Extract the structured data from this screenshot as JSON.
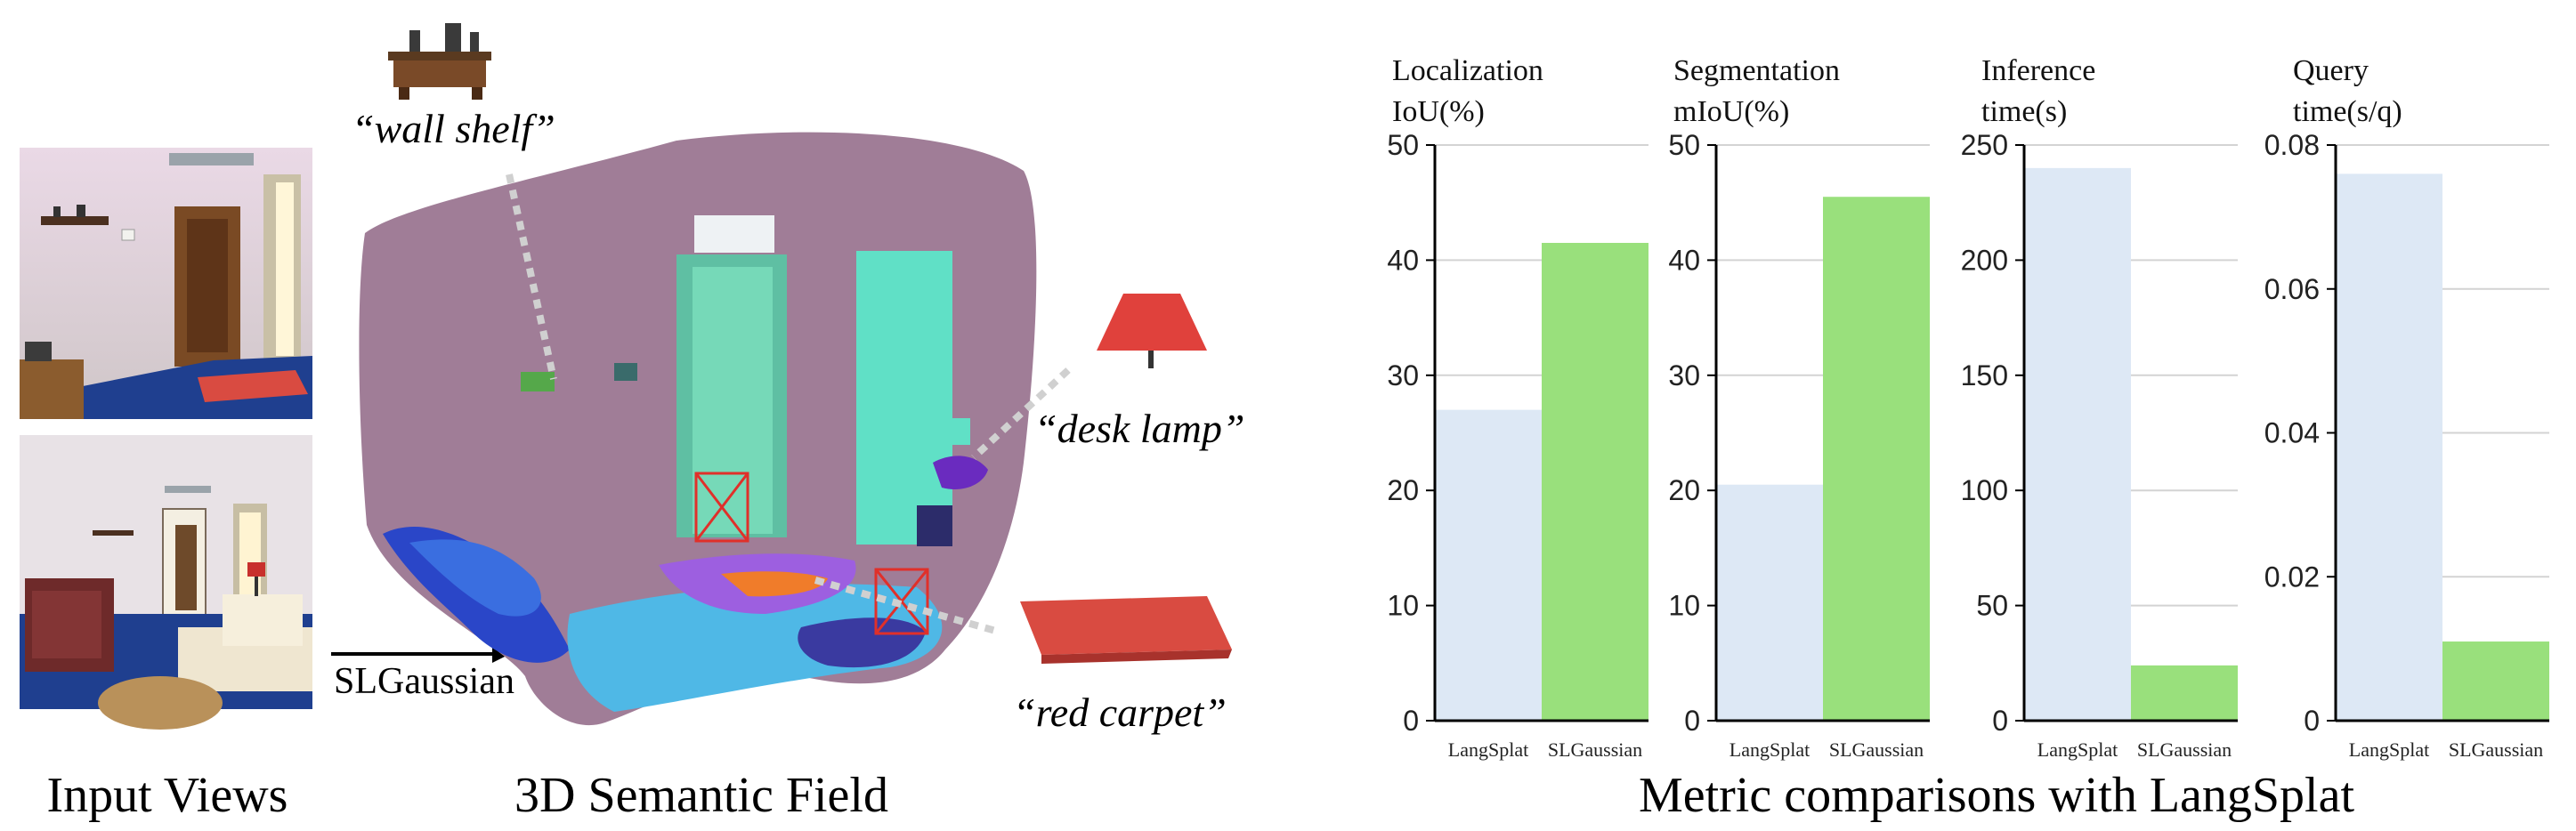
{
  "panels": {
    "input_views_label": "Input Views",
    "semantic_field_label": "3D Semantic Field",
    "metric_caption": "Metric comparisons with LangSplat",
    "method_arrow_label": "SLGaussian"
  },
  "annotations": [
    {
      "label": "“wall shelf”",
      "object": "wall shelf"
    },
    {
      "label": "“desk lamp”",
      "object": "desk lamp"
    },
    {
      "label": "“red carpet”",
      "object": "red carpet"
    }
  ],
  "colors": {
    "langsplat": "#dde8f5",
    "slgaussian": "#99e07c",
    "field_wall": "#a07d97",
    "carpet_red": "#d94b41",
    "lamp_shade": "#e0413c"
  },
  "chart_data": [
    {
      "type": "bar",
      "title_lines": [
        "Localization",
        "IoU(%)"
      ],
      "categories": [
        "LangSplat",
        "SLGaussian"
      ],
      "values": [
        27,
        41.5
      ],
      "ylim": [
        0,
        50
      ],
      "yticks": [
        "0",
        "10",
        "20",
        "30",
        "40",
        "50"
      ],
      "grid": true
    },
    {
      "type": "bar",
      "title_lines": [
        "Segmentation",
        "mIoU(%)"
      ],
      "categories": [
        "LangSplat",
        "SLGaussian"
      ],
      "values": [
        20.5,
        45.5
      ],
      "ylim": [
        0,
        50
      ],
      "yticks": [
        "0",
        "10",
        "20",
        "30",
        "40",
        "50"
      ],
      "grid": true
    },
    {
      "type": "bar",
      "title_lines": [
        "Inference",
        "time(s)"
      ],
      "categories": [
        "LangSplat",
        "SLGaussian"
      ],
      "values": [
        240,
        24
      ],
      "ylim": [
        0,
        250
      ],
      "yticks": [
        "0",
        "50",
        "100",
        "150",
        "200",
        "250"
      ],
      "grid": true
    },
    {
      "type": "bar",
      "title_lines": [
        "Query",
        "time(s/q)"
      ],
      "categories": [
        "LangSplat",
        "SLGaussian"
      ],
      "values": [
        0.076,
        0.011
      ],
      "ylim": [
        0,
        0.08
      ],
      "yticks": [
        "0",
        "0.02",
        "0.04",
        "0.06",
        "0.08"
      ],
      "grid": true
    }
  ]
}
